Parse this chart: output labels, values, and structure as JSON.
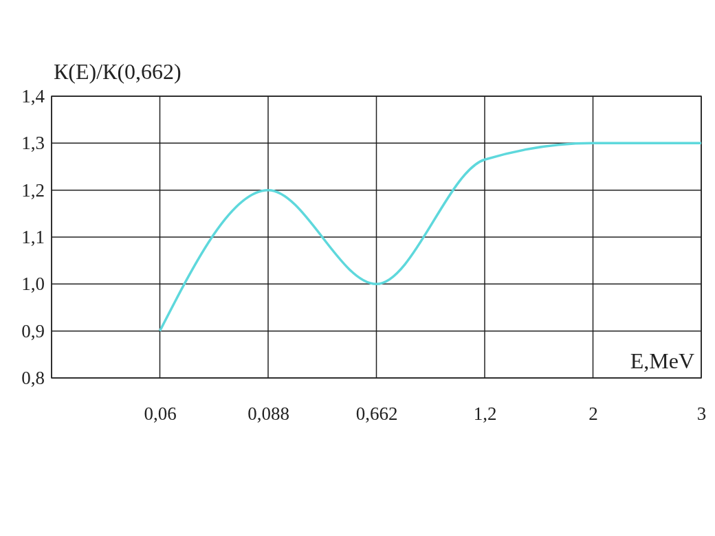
{
  "chart_data": {
    "type": "line",
    "xlabel": "E,MeV",
    "ylabel": "К(E)/К(0,662)",
    "categories": [
      null,
      "0,06",
      "0,088",
      "0,662",
      "1,2",
      "2",
      "3"
    ],
    "series": [
      {
        "color": "#5ed8dc",
        "values": [
          null,
          0.9,
          1.2,
          1.0,
          1.265,
          1.3,
          1.3
        ]
      }
    ],
    "ylim": [
      0.8,
      1.4
    ],
    "yticks": [
      {
        "value": 0.8,
        "label": "0,8"
      },
      {
        "value": 0.9,
        "label": "0,9"
      },
      {
        "value": 1.0,
        "label": "1,0"
      },
      {
        "value": 1.1,
        "label": "1,1"
      },
      {
        "value": 1.2,
        "label": "1,2"
      },
      {
        "value": 1.3,
        "label": "1,3"
      },
      {
        "value": 1.4,
        "label": "1,4"
      }
    ],
    "grid": true,
    "marker": "none",
    "line_style": "solid"
  }
}
